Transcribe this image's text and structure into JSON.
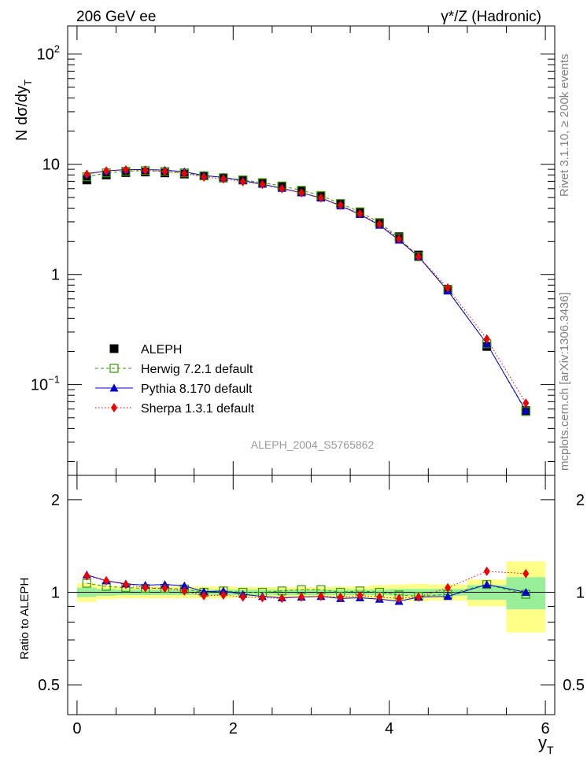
{
  "header": {
    "left_title": "206 GeV ee",
    "right_title": "γ*/Z (Hadronic)",
    "analysis_id": "ALEPH_2004_S5765862",
    "side_text_top": "Rivet 3.1.10, ≥ 200k events",
    "side_text_bottom": "mcplots.cern.ch [arXiv:1306.3436]"
  },
  "axes": {
    "ylabel_main": "N dσ/dy",
    "ylabel_main_sub": "T",
    "ylabel_ratio": "Ratio to ALEPH",
    "xlabel": "y",
    "xlabel_sub": "T",
    "main_yticks": [
      {
        "value": 100,
        "base": "10",
        "exp": "2"
      },
      {
        "value": 10,
        "base": "10",
        "exp": ""
      },
      {
        "value": 1,
        "base": "1",
        "exp": ""
      },
      {
        "value": 0.1,
        "base": "10",
        "exp": "−1"
      }
    ],
    "ratio_yticks": [
      "2",
      "1",
      "0.5"
    ],
    "xticks": [
      "0",
      "2",
      "4",
      "6"
    ]
  },
  "legend": [
    {
      "label": "ALEPH",
      "key": "data",
      "color": "#000000"
    },
    {
      "label": "Herwig 7.2.1 default",
      "key": "herwig",
      "color": "#339900"
    },
    {
      "label": "Pythia 8.170 default",
      "key": "pythia",
      "color": "#0000cc"
    },
    {
      "label": "Sherpa 1.3.1 default",
      "key": "sherpa",
      "color": "#ee0000"
    }
  ],
  "chart_data": {
    "type": "scatter",
    "x_edges": [
      0,
      0.25,
      0.5,
      0.75,
      1.0,
      1.25,
      1.5,
      1.75,
      2.0,
      2.25,
      2.5,
      2.75,
      3.0,
      3.25,
      3.5,
      3.75,
      4.0,
      4.25,
      4.5,
      5.0,
      5.5,
      6.0
    ],
    "x": [
      0.125,
      0.375,
      0.625,
      0.875,
      1.125,
      1.375,
      1.625,
      1.875,
      2.125,
      2.375,
      2.625,
      2.875,
      3.125,
      3.375,
      3.625,
      3.875,
      4.125,
      4.375,
      4.75,
      5.25,
      5.75
    ],
    "xlim": [
      -0.12,
      6.12
    ],
    "ylim_main": [
      0.015,
      180
    ],
    "yscale_main": "log",
    "ylim_ratio": [
      0.4,
      2.4
    ],
    "yscale_ratio": "log",
    "series": [
      {
        "name": "ALEPH",
        "key": "data",
        "values": [
          7.2,
          8.0,
          8.4,
          8.5,
          8.35,
          8.15,
          7.85,
          7.5,
          7.2,
          6.8,
          6.3,
          5.7,
          5.1,
          4.4,
          3.65,
          2.95,
          2.2,
          1.5,
          0.73,
          0.222,
          0.058
        ]
      },
      {
        "name": "Herwig 7.2.1 default",
        "key": "herwig",
        "values": [
          7.7,
          8.35,
          8.65,
          8.75,
          8.6,
          8.35,
          7.85,
          7.55,
          7.2,
          6.8,
          6.35,
          5.8,
          5.2,
          4.4,
          3.7,
          2.95,
          2.15,
          1.45,
          0.72,
          0.235,
          0.057
        ]
      },
      {
        "name": "Pythia 8.170 default",
        "key": "pythia",
        "values": [
          8.2,
          8.7,
          8.95,
          8.95,
          8.85,
          8.55,
          7.9,
          7.6,
          7.1,
          6.6,
          6.05,
          5.5,
          4.95,
          4.2,
          3.5,
          2.8,
          2.05,
          1.45,
          0.71,
          0.235,
          0.058
        ]
      },
      {
        "name": "Sherpa 1.3.1 default",
        "key": "sherpa",
        "values": [
          8.1,
          8.7,
          8.9,
          8.8,
          8.6,
          8.25,
          7.65,
          7.35,
          6.95,
          6.55,
          6.0,
          5.5,
          4.95,
          4.25,
          3.55,
          2.85,
          2.1,
          1.45,
          0.755,
          0.26,
          0.068
        ]
      }
    ],
    "ratio": {
      "herwig": [
        1.07,
        1.045,
        1.035,
        1.03,
        1.03,
        1.025,
        1.0,
        1.01,
        1.0,
        1.0,
        1.01,
        1.02,
        1.02,
        1.0,
        1.01,
        1.0,
        0.98,
        0.97,
        0.985,
        1.06,
        0.985
      ],
      "pythia": [
        1.14,
        1.09,
        1.065,
        1.055,
        1.06,
        1.05,
        1.005,
        1.01,
        0.985,
        0.97,
        0.96,
        0.965,
        0.97,
        0.955,
        0.96,
        0.95,
        0.935,
        0.965,
        0.97,
        1.06,
        1.0
      ],
      "sherpa": [
        1.13,
        1.09,
        1.06,
        1.035,
        1.03,
        1.01,
        0.975,
        0.98,
        0.965,
        0.96,
        0.955,
        0.965,
        0.97,
        0.965,
        0.975,
        0.965,
        0.955,
        0.965,
        1.035,
        1.17,
        1.15
      ]
    },
    "band_stat": [
      0.035,
      0.025,
      0.02,
      0.02,
      0.02,
      0.02,
      0.02,
      0.02,
      0.02,
      0.02,
      0.02,
      0.02,
      0.02,
      0.02,
      0.02,
      0.02,
      0.025,
      0.025,
      0.025,
      0.055,
      0.12
    ],
    "band_total": [
      0.07,
      0.05,
      0.045,
      0.045,
      0.045,
      0.045,
      0.045,
      0.045,
      0.04,
      0.04,
      0.04,
      0.04,
      0.04,
      0.045,
      0.045,
      0.055,
      0.06,
      0.065,
      0.06,
      0.1,
      0.26
    ],
    "grid": false
  },
  "colors": {
    "band_stat": "#99ee99",
    "band_total": "#ffff88",
    "analysis_id_text": "#999999",
    "side_text": "#808080"
  }
}
